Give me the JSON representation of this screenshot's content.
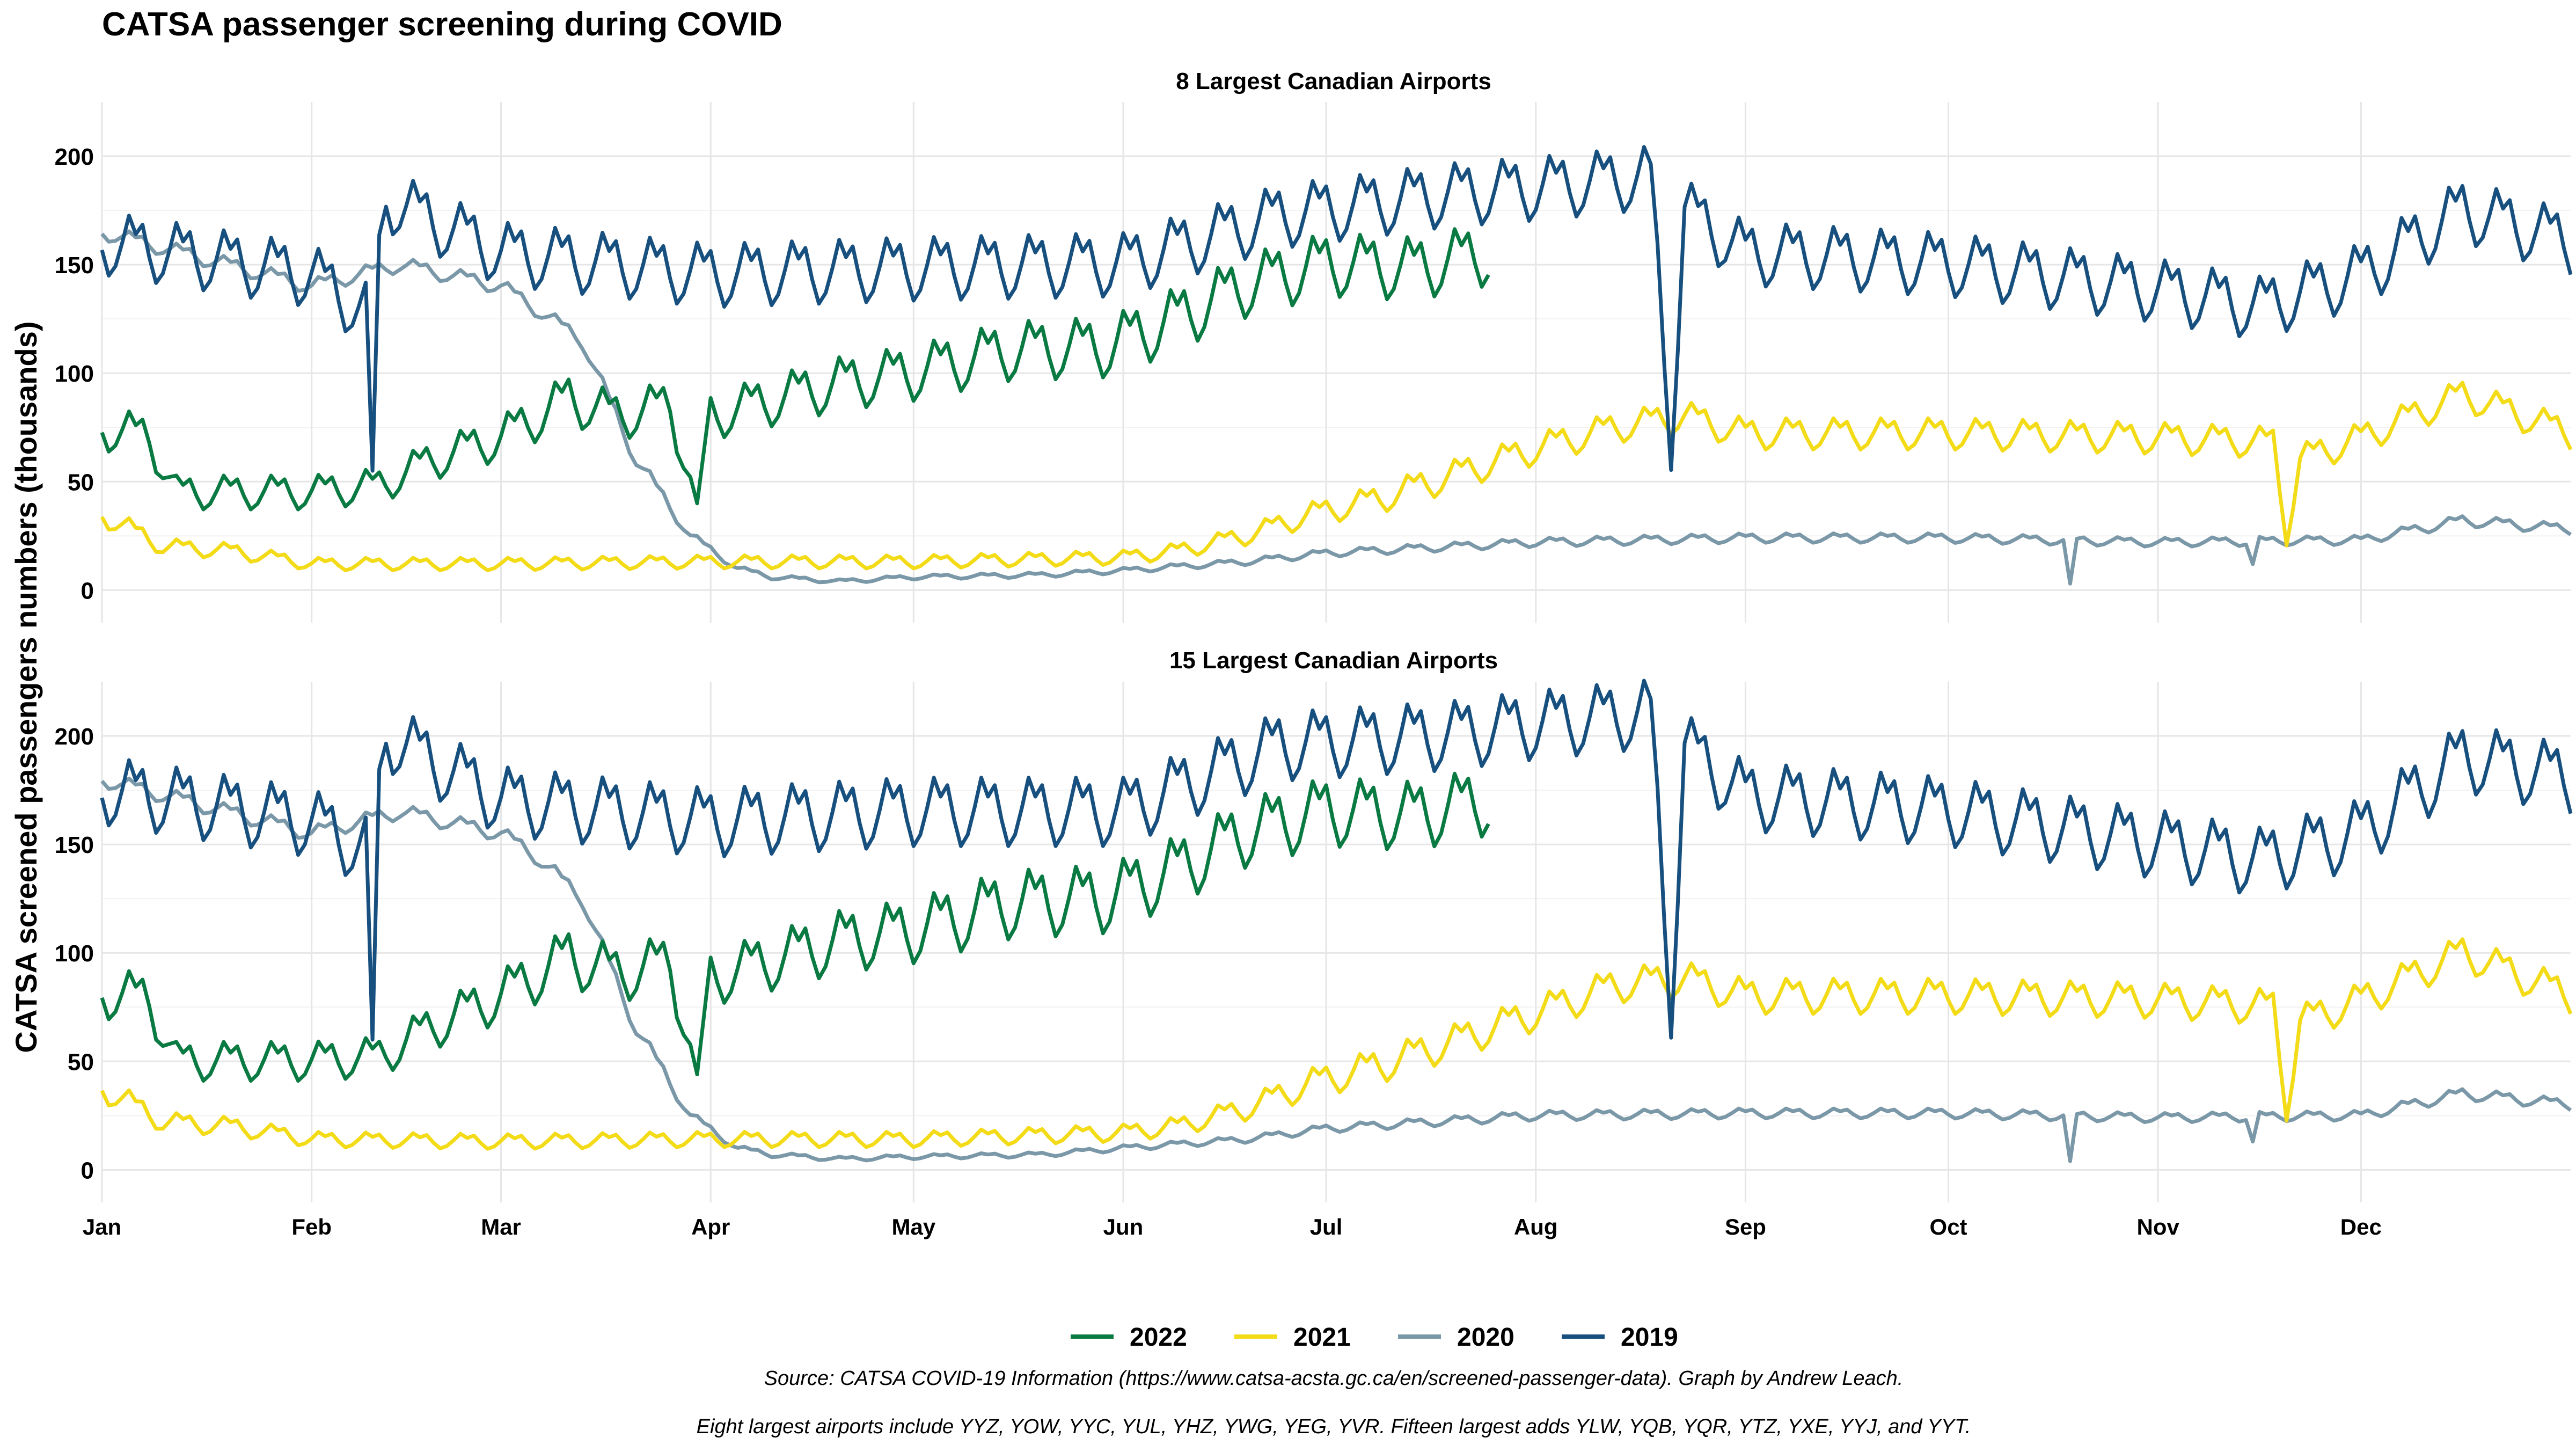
{
  "title": "CATSA passenger screening during COVID",
  "ylabel": "CATSA screened passengers numbers (thousands)",
  "x_tick_labels": [
    "Jan",
    "Feb",
    "Mar",
    "Apr",
    "May",
    "Jun",
    "Jul",
    "Aug",
    "Sep",
    "Oct",
    "Nov",
    "Dec"
  ],
  "x_tick_days": [
    1,
    32,
    60,
    91,
    121,
    152,
    182,
    213,
    244,
    274,
    305,
    335
  ],
  "y_tick_values": [
    0,
    50,
    100,
    150,
    200
  ],
  "ylim": [
    -15,
    225
  ],
  "xlim": [
    1,
    366
  ],
  "grid": true,
  "legend": {
    "position": "bottom",
    "entries": [
      {
        "name": "2022",
        "color": "#0A7A43"
      },
      {
        "name": "2021",
        "color": "#F3DB18"
      },
      {
        "name": "2020",
        "color": "#7B98A8"
      },
      {
        "name": "2019",
        "color": "#17507F"
      }
    ]
  },
  "caption_line1": "Source: CATSA COVID-19 Information (https://www.catsa-acsta.gc.ca/en/screened-passenger-data). Graph by Andrew Leach.",
  "caption_line2": "Eight largest airports include YYZ, YOW, YYC, YUL, YHZ, YWG, YEG, YVR. Fifteen largest adds YLW, YQB, YQR, YTZ, YXE, YYJ, and YYT.",
  "chart_data": [
    {
      "type": "line",
      "title": "8 Largest Canadian Airports",
      "x_unit": "day of year",
      "series": [
        {
          "name": "2019",
          "color": "#17507F",
          "x_range": [
            1,
            366
          ],
          "anchors": [
            [
              1,
              160
            ],
            [
              32,
              145
            ],
            [
              41,
              125
            ],
            [
              43,
              180
            ],
            [
              60,
              155
            ],
            [
              91,
              145
            ],
            [
              121,
              148
            ],
            [
              152,
              150
            ],
            [
              175,
              172
            ],
            [
              200,
              182
            ],
            [
              213,
              185
            ],
            [
              230,
              190
            ],
            [
              233,
              65
            ],
            [
              235,
              175
            ],
            [
              244,
              155
            ],
            [
              274,
              150
            ],
            [
              305,
              138
            ],
            [
              320,
              130
            ],
            [
              335,
              145
            ],
            [
              350,
              175
            ],
            [
              366,
              160
            ]
          ],
          "dips": [
            [
              41,
              55
            ]
          ],
          "weekly_amplitude": 12
        },
        {
          "name": "2020",
          "color": "#7B98A8",
          "x_range": [
            1,
            366
          ],
          "anchors": [
            [
              1,
              165
            ],
            [
              32,
              140
            ],
            [
              45,
              150
            ],
            [
              60,
              140
            ],
            [
              65,
              130
            ],
            [
              72,
              115
            ],
            [
              80,
              60
            ],
            [
              88,
              25
            ],
            [
              95,
              10
            ],
            [
              100,
              6
            ],
            [
              110,
              4
            ],
            [
              121,
              6
            ],
            [
              140,
              7
            ],
            [
              152,
              9
            ],
            [
              170,
              13
            ],
            [
              182,
              17
            ],
            [
              213,
              22
            ],
            [
              244,
              24
            ],
            [
              274,
              24
            ],
            [
              305,
              22
            ],
            [
              335,
              23
            ],
            [
              350,
              32
            ],
            [
              366,
              28
            ]
          ],
          "dips": [
            [
              292,
              3
            ],
            [
              319,
              12
            ]
          ],
          "weekly_amplitude": 4
        },
        {
          "name": "2021",
          "color": "#F3DB18",
          "x_range": [
            1,
            366
          ],
          "anchors": [
            [
              1,
              35
            ],
            [
              10,
              20
            ],
            [
              20,
              18
            ],
            [
              32,
              12
            ],
            [
              60,
              12
            ],
            [
              91,
              13
            ],
            [
              121,
              13
            ],
            [
              152,
              15
            ],
            [
              160,
              18
            ],
            [
              170,
              25
            ],
            [
              180,
              35
            ],
            [
              190,
              42
            ],
            [
              200,
              52
            ],
            [
              213,
              65
            ],
            [
              225,
              75
            ],
            [
              235,
              80
            ],
            [
              244,
              72
            ],
            [
              274,
              72
            ],
            [
              305,
              70
            ],
            [
              322,
              68
            ],
            [
              324,
              25
            ],
            [
              326,
              60
            ],
            [
              335,
              70
            ],
            [
              350,
              90
            ],
            [
              366,
              72
            ]
          ],
          "dips": [],
          "weekly_amplitude": 8
        },
        {
          "name": "2022",
          "color": "#0A7A43",
          "x_range": [
            1,
            206
          ],
          "anchors": [
            [
              1,
              75
            ],
            [
              8,
              70
            ],
            [
              12,
              45
            ],
            [
              20,
              45
            ],
            [
              32,
              45
            ],
            [
              42,
              48
            ],
            [
              50,
              60
            ],
            [
              60,
              70
            ],
            [
              70,
              88
            ],
            [
              77,
              80
            ],
            [
              85,
              85
            ],
            [
              89,
              40
            ],
            [
              91,
              80
            ],
            [
              110,
              95
            ],
            [
              121,
              100
            ],
            [
              135,
              110
            ],
            [
              150,
              112
            ],
            [
              160,
              125
            ],
            [
              170,
              140
            ],
            [
              182,
              150
            ],
            [
              195,
              148
            ],
            [
              206,
              155
            ]
          ],
          "dips": [
            [
              89,
              40
            ]
          ],
          "weekly_amplitude": 12
        }
      ]
    },
    {
      "type": "line",
      "title": "15 Largest Canadian Airports",
      "x_unit": "day of year",
      "series": [
        {
          "name": "2019",
          "color": "#17507F",
          "x_range": [
            1,
            366
          ],
          "anchors": [
            [
              1,
              175
            ],
            [
              32,
              160
            ],
            [
              41,
              145
            ],
            [
              43,
              200
            ],
            [
              60,
              170
            ],
            [
              91,
              160
            ],
            [
              121,
              165
            ],
            [
              152,
              165
            ],
            [
              175,
              195
            ],
            [
              200,
              200
            ],
            [
              213,
              205
            ],
            [
              230,
              210
            ],
            [
              233,
              72
            ],
            [
              235,
              195
            ],
            [
              244,
              172
            ],
            [
              274,
              165
            ],
            [
              305,
              150
            ],
            [
              320,
              142
            ],
            [
              335,
              155
            ],
            [
              350,
              190
            ],
            [
              366,
              180
            ]
          ],
          "dips": [
            [
              41,
              60
            ]
          ],
          "weekly_amplitude": 13
        },
        {
          "name": "2020",
          "color": "#7B98A8",
          "x_range": [
            1,
            366
          ],
          "anchors": [
            [
              1,
              180
            ],
            [
              32,
              155
            ],
            [
              45,
              165
            ],
            [
              60,
              155
            ],
            [
              65,
              145
            ],
            [
              72,
              125
            ],
            [
              80,
              65
            ],
            [
              88,
              25
            ],
            [
              95,
              10
            ],
            [
              100,
              7
            ],
            [
              110,
              5
            ],
            [
              121,
              6
            ],
            [
              140,
              7
            ],
            [
              152,
              10
            ],
            [
              170,
              14
            ],
            [
              182,
              19
            ],
            [
              213,
              25
            ],
            [
              244,
              26
            ],
            [
              274,
              26
            ],
            [
              305,
              24
            ],
            [
              335,
              25
            ],
            [
              350,
              35
            ],
            [
              366,
              30
            ]
          ],
          "dips": [
            [
              292,
              4
            ],
            [
              319,
              13
            ]
          ],
          "weekly_amplitude": 4
        },
        {
          "name": "2021",
          "color": "#F3DB18",
          "x_range": [
            1,
            366
          ],
          "anchors": [
            [
              1,
              38
            ],
            [
              10,
              22
            ],
            [
              20,
              20
            ],
            [
              32,
              14
            ],
            [
              60,
              13
            ],
            [
              91,
              14
            ],
            [
              121,
              14
            ],
            [
              152,
              17
            ],
            [
              160,
              20
            ],
            [
              170,
              28
            ],
            [
              180,
              40
            ],
            [
              190,
              48
            ],
            [
              200,
              58
            ],
            [
              213,
              72
            ],
            [
              225,
              85
            ],
            [
              235,
              88
            ],
            [
              244,
              80
            ],
            [
              274,
              80
            ],
            [
              305,
              78
            ],
            [
              322,
              75
            ],
            [
              324,
              28
            ],
            [
              326,
              68
            ],
            [
              335,
              78
            ],
            [
              350,
              100
            ],
            [
              366,
              80
            ]
          ],
          "dips": [],
          "weekly_amplitude": 9
        },
        {
          "name": "2022",
          "color": "#0A7A43",
          "x_range": [
            1,
            206
          ],
          "anchors": [
            [
              1,
              82
            ],
            [
              8,
              78
            ],
            [
              12,
              50
            ],
            [
              20,
              50
            ],
            [
              32,
              50
            ],
            [
              42,
              52
            ],
            [
              50,
              66
            ],
            [
              60,
              80
            ],
            [
              70,
              98
            ],
            [
              77,
              90
            ],
            [
              85,
              95
            ],
            [
              89,
              44
            ],
            [
              91,
              88
            ],
            [
              110,
              105
            ],
            [
              121,
              110
            ],
            [
              135,
              122
            ],
            [
              150,
              125
            ],
            [
              160,
              138
            ],
            [
              170,
              155
            ],
            [
              182,
              165
            ],
            [
              195,
              163
            ],
            [
              206,
              170
            ]
          ],
          "dips": [
            [
              89,
              44
            ]
          ],
          "weekly_amplitude": 13
        }
      ]
    }
  ]
}
